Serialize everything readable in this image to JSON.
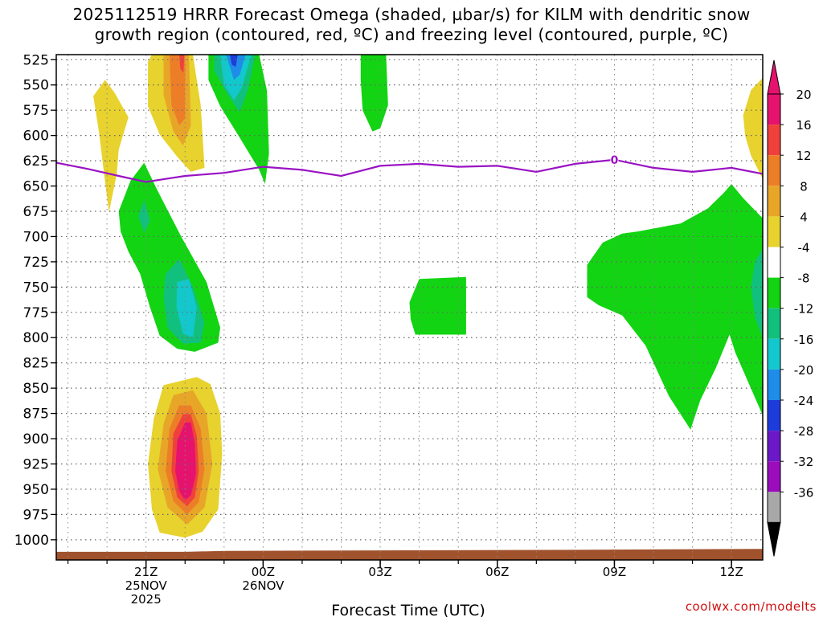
{
  "title_lines": [
    "2025112519 HRRR Forecast Omega (shaded, µbar/s) for KILM with dendritic snow",
    "growth region (contoured, red, ºC) and freezing level (contoured, purple, ºC)"
  ],
  "credit": "coolwx.com/modelts",
  "chart_data": {
    "type": "heatmap",
    "title": "2025112519 HRRR Forecast Omega (shaded, µbar/s) for KILM with dendritic snow growth region (contoured, red, ºC) and freezing level (contoured, purple, ºC)",
    "xlabel": "Forecast Time (UTC)",
    "ylabel": "",
    "x_unit": "hours after 2025-11-25 19Z",
    "xlim": [
      -0.3,
      17.8
    ],
    "ylim": [
      1020,
      520
    ],
    "y_ticks": [
      525,
      550,
      575,
      600,
      625,
      650,
      675,
      700,
      725,
      750,
      775,
      800,
      825,
      850,
      875,
      900,
      925,
      950,
      975,
      1000
    ],
    "x_ticks": [
      {
        "x": 2,
        "lines": [
          "21Z",
          "25NOV",
          "2025"
        ]
      },
      {
        "x": 5,
        "lines": [
          "00Z",
          "26NOV"
        ]
      },
      {
        "x": 8,
        "lines": [
          "03Z"
        ]
      },
      {
        "x": 11,
        "lines": [
          "06Z"
        ]
      },
      {
        "x": 14,
        "lines": [
          "09Z"
        ]
      },
      {
        "x": 17,
        "lines": [
          "12Z"
        ]
      }
    ],
    "grid": true,
    "colorbar": {
      "levels": [
        -36,
        -32,
        -28,
        -24,
        -20,
        -16,
        -12,
        -8,
        -4,
        4,
        8,
        12,
        16,
        20
      ],
      "labels": [
        "20",
        "16",
        "12",
        "8",
        "4",
        "-4",
        "-8",
        "-12",
        "-16",
        "-20",
        "-24",
        "-28",
        "-32",
        "-36"
      ],
      "colors_top_to_bottom": [
        "#e5126e",
        "#f0403c",
        "#ec7e28",
        "#e8a628",
        "#e8d22e",
        "#ffffff",
        "#12d412",
        "#12c07e",
        "#12c8cc",
        "#1e8ce8",
        "#1e3cdc",
        "#6a18c8",
        "#9a0cbc",
        "#a8a8a8"
      ],
      "over_color": "#e5126e",
      "under_color": "#000000"
    },
    "colors": {
      "pos4": "#e8d22e",
      "pos8": "#e8a628",
      "pos12": "#ec7e28",
      "pos16": "#f0403c",
      "pos20": "#e5126e",
      "neg4": "#12d412",
      "neg8": "#12c07e",
      "neg12": "#12c8cc",
      "neg16": "#1e8ce8",
      "neg20": "#1e3cdc",
      "freezing": "#9a12c4",
      "ground": "#a0522d"
    },
    "freezing_level": {
      "label": "0",
      "label_point": [
        14,
        624
      ],
      "points": [
        [
          -0.3,
          627
        ],
        [
          0.5,
          633
        ],
        [
          1.3,
          640
        ],
        [
          2.0,
          646
        ],
        [
          2.5,
          643
        ],
        [
          3.0,
          640
        ],
        [
          4.0,
          637
        ],
        [
          5.0,
          631
        ],
        [
          6.0,
          634
        ],
        [
          7.0,
          640
        ],
        [
          7.5,
          635
        ],
        [
          8.0,
          630
        ],
        [
          9.0,
          628
        ],
        [
          10.0,
          631
        ],
        [
          11.0,
          630
        ],
        [
          12.0,
          636
        ],
        [
          13.0,
          628
        ],
        [
          14.0,
          624
        ],
        [
          15.0,
          632
        ],
        [
          16.0,
          636
        ],
        [
          17.0,
          632
        ],
        [
          17.8,
          638
        ]
      ]
    },
    "ground": [
      [
        -0.3,
        1012
      ],
      [
        3.0,
        1012
      ],
      [
        4.0,
        1011
      ],
      [
        13.0,
        1010
      ],
      [
        17.8,
        1009
      ]
    ],
    "regions": [
      {
        "level": "pos4",
        "points": [
          [
            0.65,
            561
          ],
          [
            0.95,
            545
          ],
          [
            1.2,
            558
          ],
          [
            1.55,
            582
          ],
          [
            1.3,
            614
          ],
          [
            1.25,
            638
          ],
          [
            1.05,
            676
          ],
          [
            0.92,
            636
          ],
          [
            0.8,
            598
          ]
        ]
      },
      {
        "level": "pos4",
        "points": [
          [
            2.05,
            527
          ],
          [
            2.15,
            520
          ],
          [
            3.2,
            520
          ],
          [
            3.4,
            570
          ],
          [
            3.5,
            632
          ],
          [
            3.15,
            636
          ],
          [
            2.8,
            621
          ],
          [
            2.35,
            599
          ],
          [
            2.05,
            571
          ]
        ]
      },
      {
        "level": "pos8",
        "points": [
          [
            2.45,
            520
          ],
          [
            3.1,
            520
          ],
          [
            3.15,
            590
          ],
          [
            2.95,
            610
          ],
          [
            2.7,
            596
          ],
          [
            2.45,
            560
          ]
        ]
      },
      {
        "level": "pos12",
        "points": [
          [
            2.6,
            520
          ],
          [
            3.0,
            520
          ],
          [
            3.0,
            583
          ],
          [
            2.85,
            590
          ],
          [
            2.65,
            570
          ]
        ]
      },
      {
        "level": "pos16",
        "points": [
          [
            2.85,
            520
          ],
          [
            2.98,
            520
          ],
          [
            2.96,
            538
          ],
          [
            2.88,
            534
          ]
        ]
      },
      {
        "level": "neg4",
        "points": [
          [
            3.6,
            520
          ],
          [
            4.9,
            520
          ],
          [
            5.1,
            556
          ],
          [
            5.15,
            618
          ],
          [
            5.05,
            648
          ],
          [
            4.9,
            634
          ],
          [
            4.4,
            602
          ],
          [
            3.9,
            571
          ],
          [
            3.6,
            545
          ]
        ]
      },
      {
        "level": "neg8",
        "points": [
          [
            3.75,
            520
          ],
          [
            4.8,
            520
          ],
          [
            4.6,
            556
          ],
          [
            4.4,
            577
          ],
          [
            4.1,
            560
          ],
          [
            3.75,
            536
          ]
        ]
      },
      {
        "level": "neg12",
        "points": [
          [
            3.9,
            520
          ],
          [
            4.7,
            520
          ],
          [
            4.45,
            553
          ],
          [
            4.25,
            565
          ],
          [
            4.0,
            550
          ]
        ]
      },
      {
        "level": "neg16",
        "points": [
          [
            4.05,
            520
          ],
          [
            4.55,
            520
          ],
          [
            4.4,
            540
          ],
          [
            4.25,
            545
          ]
        ]
      },
      {
        "level": "neg20",
        "points": [
          [
            4.15,
            520
          ],
          [
            4.35,
            520
          ],
          [
            4.3,
            532
          ],
          [
            4.2,
            530
          ]
        ]
      },
      {
        "level": "neg4",
        "points": [
          [
            7.5,
            520
          ],
          [
            8.15,
            520
          ],
          [
            8.2,
            570
          ],
          [
            8.0,
            593
          ],
          [
            7.8,
            596
          ],
          [
            7.55,
            575
          ],
          [
            7.5,
            545
          ]
        ]
      },
      {
        "level": "neg4",
        "points": [
          [
            1.3,
            675
          ],
          [
            1.6,
            645
          ],
          [
            1.95,
            627
          ],
          [
            2.3,
            655
          ],
          [
            2.9,
            700
          ],
          [
            3.55,
            745
          ],
          [
            3.9,
            790
          ],
          [
            3.85,
            805
          ],
          [
            3.25,
            814
          ],
          [
            2.8,
            811
          ],
          [
            2.35,
            798
          ],
          [
            2.1,
            770
          ],
          [
            1.85,
            737
          ],
          [
            1.55,
            715
          ],
          [
            1.35,
            695
          ]
        ]
      },
      {
        "level": "neg8",
        "points": [
          [
            1.95,
            664
          ],
          [
            2.1,
            684
          ],
          [
            1.95,
            696
          ],
          [
            1.8,
            680
          ]
        ]
      },
      {
        "level": "neg8",
        "points": [
          [
            2.5,
            737
          ],
          [
            2.85,
            722
          ],
          [
            3.2,
            750
          ],
          [
            3.5,
            785
          ],
          [
            3.4,
            805
          ],
          [
            2.95,
            806
          ],
          [
            2.55,
            790
          ],
          [
            2.45,
            760
          ]
        ]
      },
      {
        "level": "neg12",
        "points": [
          [
            2.8,
            745
          ],
          [
            3.1,
            742
          ],
          [
            3.3,
            770
          ],
          [
            3.2,
            800
          ],
          [
            2.95,
            796
          ],
          [
            2.78,
            770
          ]
        ]
      },
      {
        "level": "neg4",
        "points": [
          [
            8.75,
            765
          ],
          [
            9.0,
            742
          ],
          [
            10.2,
            740
          ],
          [
            10.2,
            797
          ],
          [
            8.9,
            797
          ],
          [
            8.78,
            782
          ]
        ]
      },
      {
        "level": "neg4",
        "points": [
          [
            13.3,
            728
          ],
          [
            13.7,
            706
          ],
          [
            14.2,
            697
          ],
          [
            14.6,
            695
          ],
          [
            15.7,
            687
          ],
          [
            16.4,
            672
          ],
          [
            16.8,
            657
          ],
          [
            17.0,
            648
          ],
          [
            17.3,
            662
          ],
          [
            17.8,
            682
          ],
          [
            17.8,
            877
          ],
          [
            17.1,
            815
          ],
          [
            16.95,
            797
          ],
          [
            16.6,
            830
          ],
          [
            16.2,
            862
          ],
          [
            15.95,
            891
          ],
          [
            15.4,
            858
          ],
          [
            14.8,
            808
          ],
          [
            14.2,
            778
          ],
          [
            13.6,
            768
          ],
          [
            13.3,
            760
          ]
        ]
      },
      {
        "level": "neg8",
        "points": [
          [
            17.6,
            725
          ],
          [
            17.8,
            712
          ],
          [
            17.8,
            800
          ],
          [
            17.6,
            780
          ],
          [
            17.5,
            750
          ]
        ]
      },
      {
        "level": "pos4",
        "points": [
          [
            17.3,
            580
          ],
          [
            17.5,
            555
          ],
          [
            17.8,
            543
          ],
          [
            17.8,
            643
          ],
          [
            17.5,
            620
          ],
          [
            17.35,
            600
          ]
        ]
      },
      {
        "level": "pos4",
        "points": [
          [
            2.2,
            880
          ],
          [
            2.45,
            847
          ],
          [
            3.3,
            839
          ],
          [
            3.65,
            846
          ],
          [
            3.9,
            875
          ],
          [
            3.95,
            915
          ],
          [
            3.85,
            970
          ],
          [
            3.45,
            992
          ],
          [
            3.0,
            998
          ],
          [
            2.35,
            993
          ],
          [
            2.15,
            970
          ],
          [
            2.05,
            925
          ]
        ]
      },
      {
        "level": "pos8",
        "points": [
          [
            2.45,
            885
          ],
          [
            2.7,
            857
          ],
          [
            3.2,
            852
          ],
          [
            3.55,
            875
          ],
          [
            3.7,
            925
          ],
          [
            3.5,
            968
          ],
          [
            3.05,
            985
          ],
          [
            2.55,
            968
          ],
          [
            2.3,
            930
          ]
        ]
      },
      {
        "level": "pos12",
        "points": [
          [
            2.6,
            890
          ],
          [
            2.85,
            867
          ],
          [
            3.15,
            867
          ],
          [
            3.4,
            890
          ],
          [
            3.5,
            930
          ],
          [
            3.35,
            963
          ],
          [
            3.05,
            975
          ],
          [
            2.7,
            962
          ],
          [
            2.5,
            932
          ]
        ]
      },
      {
        "level": "pos16",
        "points": [
          [
            2.7,
            895
          ],
          [
            2.95,
            876
          ],
          [
            3.15,
            876
          ],
          [
            3.3,
            897
          ],
          [
            3.35,
            932
          ],
          [
            3.25,
            958
          ],
          [
            3.05,
            967
          ],
          [
            2.8,
            958
          ],
          [
            2.65,
            932
          ]
        ]
      },
      {
        "level": "pos20",
        "points": [
          [
            2.8,
            902
          ],
          [
            3.0,
            884
          ],
          [
            3.15,
            884
          ],
          [
            3.25,
            905
          ],
          [
            3.28,
            935
          ],
          [
            3.15,
            956
          ],
          [
            3.0,
            961
          ],
          [
            2.85,
            952
          ],
          [
            2.75,
            932
          ]
        ]
      }
    ]
  }
}
